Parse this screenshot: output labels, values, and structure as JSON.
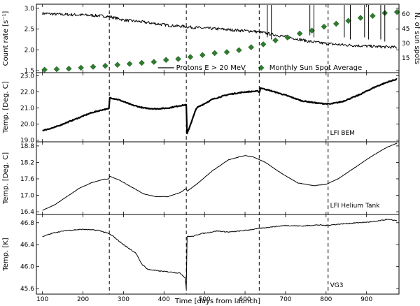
{
  "chart_data": [
    {
      "id": "counts",
      "type": "line",
      "ylabel": "Count rate [s⁻¹]",
      "y2label": "N. of sun spots",
      "ylim": [
        1.45,
        3.1
      ],
      "y2lim": [
        0,
        70
      ],
      "yticks": [
        1.5,
        2.0,
        2.5,
        3.0
      ],
      "yticklabels": [
        "1.5",
        "2.0",
        "2.5",
        "3.0"
      ],
      "y2ticks": [
        15,
        30,
        45,
        60
      ],
      "y2ticklabels": [
        "15",
        "30",
        "45",
        "60"
      ],
      "legend": {
        "placement": "bottom",
        "line_label": "Protons E > 20 MeV",
        "marker_label": "Monthly Sun Spot Average"
      },
      "series": [
        {
          "name": "Protons E > 20 MeV",
          "kind": "line",
          "color": "#000000",
          "x": [
            100,
            130,
            160,
            200,
            240,
            265,
            275,
            300,
            340,
            380,
            420,
            455,
            460,
            500,
            540,
            580,
            620,
            640,
            680,
            720,
            760,
            800,
            840,
            880,
            920,
            975
          ],
          "y": [
            2.88,
            2.86,
            2.85,
            2.84,
            2.82,
            2.8,
            2.78,
            2.72,
            2.68,
            2.63,
            2.58,
            2.56,
            2.55,
            2.52,
            2.5,
            2.47,
            2.45,
            2.42,
            2.35,
            2.28,
            2.2,
            2.15,
            2.12,
            2.1,
            2.08,
            2.06
          ]
        },
        {
          "name": "Monthly Sun Spot Average",
          "kind": "scatter",
          "color": "#2e7d2e",
          "x": [
            105,
            135,
            165,
            195,
            225,
            255,
            285,
            315,
            345,
            375,
            405,
            435,
            465,
            495,
            525,
            555,
            585,
            615,
            645,
            675,
            705,
            735,
            765,
            795,
            825,
            855,
            885,
            915,
            945,
            975
          ],
          "y": [
            3,
            3.5,
            4,
            5,
            6,
            7,
            8,
            9,
            10,
            11,
            13,
            14,
            16,
            18,
            20,
            21,
            23,
            26,
            29,
            33,
            36,
            40,
            43,
            47,
            50,
            53,
            56,
            58,
            61,
            62
          ]
        }
      ],
      "spikes": {
        "x": [
          655,
          665,
          760,
          770,
          845,
          860,
          895,
          905,
          935,
          945
        ],
        "y": [
          2.3,
          2.25,
          2.35,
          2.3,
          2.3,
          2.25,
          2.3,
          2.25,
          2.25,
          2.2
        ]
      }
    },
    {
      "id": "bem",
      "type": "line",
      "ylabel": "Temp. [Deg. C]",
      "ylim": [
        18.9,
        23.2
      ],
      "yticks": [
        19,
        20,
        21,
        22,
        23
      ],
      "yticklabels": [
        "19.0",
        "20.0",
        "21.0",
        "22.0",
        "23.0"
      ],
      "annotation": "LFI BEM",
      "series": [
        {
          "name": "LFI BEM",
          "kind": "line",
          "color": "#000000",
          "x": [
            100,
            130,
            160,
            190,
            220,
            250,
            264,
            266,
            290,
            320,
            350,
            380,
            410,
            440,
            455,
            457,
            480,
            520,
            560,
            600,
            630,
            636,
            638,
            660,
            700,
            740,
            780,
            810,
            840,
            880,
            920,
            950,
            975
          ],
          "y": [
            19.6,
            19.8,
            20.1,
            20.4,
            20.7,
            20.9,
            20.95,
            21.65,
            21.5,
            21.2,
            21.0,
            20.95,
            21.0,
            21.15,
            21.2,
            19.4,
            21.0,
            21.55,
            21.85,
            22.0,
            22.05,
            22.0,
            22.25,
            22.1,
            21.8,
            21.45,
            21.3,
            21.25,
            21.4,
            21.8,
            22.3,
            22.6,
            22.8
          ]
        }
      ]
    },
    {
      "id": "helium",
      "type": "line",
      "ylabel": "Temp. [Deg. C]",
      "ylim": [
        16.3,
        18.95
      ],
      "yticks": [
        16.4,
        17.0,
        17.6,
        18.2,
        18.8
      ],
      "yticklabels": [
        "16.4",
        "17.0",
        "17.6",
        "18.2",
        "18.8"
      ],
      "annotation": "LFI Helium Tank",
      "series": [
        {
          "name": "LFI Helium Tank",
          "kind": "line",
          "color": "#000000",
          "x": [
            100,
            130,
            160,
            190,
            220,
            250,
            264,
            266,
            290,
            320,
            350,
            380,
            410,
            440,
            455,
            457,
            480,
            520,
            560,
            600,
            620,
            650,
            690,
            730,
            770,
            800,
            830,
            870,
            910,
            950,
            975
          ],
          "y": [
            16.45,
            16.65,
            16.95,
            17.25,
            17.45,
            17.58,
            17.6,
            17.7,
            17.55,
            17.3,
            17.05,
            16.95,
            16.95,
            17.1,
            17.25,
            17.15,
            17.4,
            17.9,
            18.3,
            18.45,
            18.4,
            18.2,
            17.8,
            17.45,
            17.35,
            17.4,
            17.6,
            18.0,
            18.4,
            18.75,
            18.9
          ]
        }
      ]
    },
    {
      "id": "vg3",
      "type": "line",
      "ylabel": "Temp. [K]",
      "ylim": [
        45.5,
        46.95
      ],
      "yticks": [
        45.6,
        46.0,
        46.4,
        46.8
      ],
      "yticklabels": [
        "45.6",
        "46.0",
        "46.4",
        "46.8"
      ],
      "annotation": "VG3",
      "series": [
        {
          "name": "VG3",
          "kind": "line",
          "color": "#000000",
          "x": [
            100,
            130,
            160,
            200,
            240,
            264,
            275,
            300,
            330,
            345,
            360,
            390,
            420,
            440,
            452,
            455,
            457,
            470,
            490,
            510,
            530,
            560,
            590,
            620,
            640,
            660,
            700,
            740,
            780,
            800,
            840,
            880,
            920,
            950,
            975
          ],
          "y": [
            46.55,
            46.62,
            46.66,
            46.68,
            46.66,
            46.6,
            46.55,
            46.4,
            46.25,
            46.05,
            45.95,
            45.92,
            45.9,
            45.88,
            45.8,
            45.6,
            46.55,
            46.55,
            46.6,
            46.62,
            46.65,
            46.63,
            46.65,
            46.68,
            46.7,
            46.72,
            46.75,
            46.74,
            46.76,
            46.75,
            46.78,
            46.8,
            46.82,
            46.86,
            46.84
          ]
        }
      ]
    }
  ],
  "x_axis": {
    "label": "Time [days from launch]",
    "xlim": [
      85,
      980
    ],
    "ticks": [
      100,
      200,
      300,
      400,
      500,
      600,
      700,
      800,
      900
    ],
    "ticklabels": [
      "100",
      "200",
      "300",
      "400",
      "500",
      "600",
      "700",
      "800",
      "900"
    ]
  },
  "event_lines_x": [
    265,
    455,
    635,
    805
  ]
}
